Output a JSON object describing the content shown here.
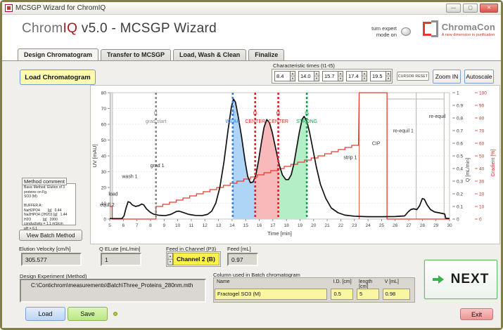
{
  "window": {
    "title": "MCSGP Wizard for ChromIQ",
    "minimize": "—",
    "maximize": "▢",
    "close": "✕"
  },
  "header": {
    "title_gray": "Chrom",
    "title_red": "IQ",
    "title_rest": "  v5.0 - MCSGP Wizard",
    "expert_line1": "turn expert",
    "expert_line2": "mode on",
    "logo_brand": "ChromaCon",
    "logo_tagline": "A new dimension in purification"
  },
  "tabs": [
    {
      "label": "Design Chromatogram",
      "active": true
    },
    {
      "label": "Transfer to MCSGP",
      "active": false
    },
    {
      "label": "Load, Wash & Clean",
      "active": false
    },
    {
      "label": "Finalize",
      "active": false
    }
  ],
  "toolbar": {
    "load_chromatogram": "Load Chromatogram",
    "characteristic_times_label": "Characteristic times (t1-t5)",
    "characteristic_times": [
      "8.4",
      "14.0",
      "15.7",
      "17.4",
      "19.5"
    ],
    "cursor_reset": "CURSOR RESET",
    "zoom_in": "Zoom IN",
    "autoscale": "Autoscale"
  },
  "chart_data": {
    "type": "line",
    "xlabel": "Time [min]",
    "ylabel_left": "UV [mAU]",
    "ylabel_right1": "Q [mL/min]",
    "ylabel_right2": "Gradient [%]",
    "xlim": [
      5,
      30
    ],
    "xstep": 1,
    "ylim_left": [
      0,
      80
    ],
    "ystep_left": 10,
    "ylim_right1": [
      0,
      1
    ],
    "ystep_right1": 0.1,
    "ylim_right2": [
      0,
      100
    ],
    "ystep_right2": 10,
    "grid": "horizontal-dotted",
    "uv_trace": {
      "name": "UV",
      "color": "#111111",
      "points": [
        [
          5,
          0.3
        ],
        [
          5.9,
          0.3
        ],
        [
          6.05,
          2
        ],
        [
          6.2,
          7
        ],
        [
          6.35,
          11
        ],
        [
          6.5,
          10.5
        ],
        [
          6.65,
          9
        ],
        [
          6.9,
          8
        ],
        [
          7.15,
          8.5
        ],
        [
          7.35,
          9.5
        ],
        [
          7.5,
          9
        ],
        [
          7.7,
          6.5
        ],
        [
          7.95,
          4.5
        ],
        [
          8.2,
          3.2
        ],
        [
          8.6,
          2.4
        ],
        [
          9.1,
          2.2
        ],
        [
          9.5,
          3
        ],
        [
          9.9,
          4.8
        ],
        [
          10.1,
          5
        ],
        [
          10.4,
          4.2
        ],
        [
          10.8,
          3
        ],
        [
          11.3,
          2.3
        ],
        [
          11.8,
          2.2
        ],
        [
          12.2,
          3
        ],
        [
          12.5,
          5
        ],
        [
          12.8,
          10
        ],
        [
          13.1,
          20
        ],
        [
          13.4,
          36
        ],
        [
          13.7,
          56
        ],
        [
          13.95,
          71
        ],
        [
          14.1,
          76
        ],
        [
          14.25,
          74
        ],
        [
          14.45,
          65
        ],
        [
          14.7,
          52
        ],
        [
          14.95,
          37
        ],
        [
          15.15,
          27
        ],
        [
          15.35,
          23
        ],
        [
          15.55,
          23.5
        ],
        [
          15.75,
          28
        ],
        [
          15.95,
          37
        ],
        [
          16.15,
          48
        ],
        [
          16.35,
          58
        ],
        [
          16.55,
          63
        ],
        [
          16.75,
          61
        ],
        [
          16.95,
          55
        ],
        [
          17.2,
          45
        ],
        [
          17.45,
          35
        ],
        [
          17.7,
          28
        ],
        [
          17.95,
          25
        ],
        [
          18.15,
          25
        ],
        [
          18.35,
          28
        ],
        [
          18.55,
          35
        ],
        [
          18.75,
          45
        ],
        [
          18.95,
          55
        ],
        [
          19.15,
          63
        ],
        [
          19.3,
          65
        ],
        [
          19.5,
          62
        ],
        [
          19.7,
          55
        ],
        [
          19.95,
          44
        ],
        [
          20.2,
          33
        ],
        [
          20.5,
          22
        ],
        [
          20.9,
          13
        ],
        [
          21.3,
          7
        ],
        [
          21.8,
          4
        ],
        [
          22.3,
          2.5
        ],
        [
          23,
          1.8
        ],
        [
          24,
          1.5
        ],
        [
          25,
          1.5
        ],
        [
          26,
          1.6
        ],
        [
          26.7,
          2
        ],
        [
          26.95,
          4.5
        ],
        [
          27.15,
          6
        ],
        [
          27.35,
          6.5
        ],
        [
          27.6,
          6
        ],
        [
          27.8,
          8.5
        ],
        [
          28,
          13
        ],
        [
          28.15,
          12.5
        ],
        [
          28.35,
          9
        ],
        [
          28.6,
          6
        ],
        [
          28.9,
          4.5
        ],
        [
          29.2,
          4
        ],
        [
          29.5,
          3.5
        ],
        [
          29.65,
          3.2
        ],
        [
          29.72,
          0.5
        ],
        [
          30,
          0.3
        ]
      ]
    },
    "gradient_trace": {
      "name": "Gradient",
      "color": "#e8392b",
      "head": [
        [
          5,
          10
        ],
        [
          5.18,
          10
        ],
        [
          5.18,
          0
        ],
        [
          8.4,
          0
        ],
        [
          8.4,
          10
        ]
      ],
      "ramp": {
        "x1": 8.4,
        "y1": 10,
        "x2": 23.3,
        "y2": 60,
        "steps": 30
      },
      "tail": [
        [
          23.35,
          100
        ],
        [
          25.4,
          100
        ],
        [
          25.4,
          0
        ],
        [
          30,
          0
        ]
      ]
    },
    "cursors": [
      {
        "t": 8.4,
        "label1": "t1",
        "label2": "grad start",
        "color": "#8c8c8c"
      },
      {
        "t": 14.05,
        "label1": "t2",
        "label2": "WEAK",
        "color": "#3b7dd8"
      },
      {
        "t": 15.7,
        "label1": "t3",
        "label2": "CENTER",
        "color": "#d02a2a"
      },
      {
        "t": 17.4,
        "label1": "t4",
        "label2": "CENTER",
        "color": "#d02a2a"
      },
      {
        "t": 19.5,
        "label1": "t5",
        "label2": "STRONG",
        "color": "#1f9e4a"
      }
    ],
    "regions": [
      {
        "x1": 14.05,
        "x2": 15.7,
        "fill": "#aed4f6"
      },
      {
        "x1": 15.7,
        "x2": 17.4,
        "fill": "#f7b9b9"
      },
      {
        "x1": 17.4,
        "x2": 19.5,
        "fill": "#b3eec6"
      }
    ],
    "phase_lines": [
      {
        "x": 5.08,
        "color": "gray"
      },
      {
        "x": 5.2,
        "color": "gray"
      },
      {
        "x": 23.35,
        "color": "red"
      },
      {
        "x": 25.4,
        "color": "red"
      },
      {
        "x": 27.55,
        "color": "gray"
      },
      {
        "x": 29.6,
        "color": "gray"
      }
    ],
    "q_segments": [
      {
        "x1": 25.42,
        "x2": 29.6,
        "q": 0.95
      }
    ],
    "phase_labels": [
      {
        "x": 5.6,
        "y": 15,
        "text": "load",
        "anchor": "end"
      },
      {
        "x": 5.35,
        "y": 8,
        "text": "equil 2",
        "anchor": "end"
      },
      {
        "x": 5.9,
        "y": 26,
        "text": "wash 1",
        "anchor": "start"
      },
      {
        "x": 8.5,
        "y": 33,
        "text": "grad 1",
        "anchor": "middle"
      },
      {
        "x": 22.7,
        "y": 38,
        "text": "strip 1",
        "anchor": "middle"
      },
      {
        "x": 24.6,
        "y": 47,
        "text": "CIP",
        "anchor": "middle"
      },
      {
        "x": 26.6,
        "y": 55,
        "text": "re-equil 1",
        "anchor": "middle"
      },
      {
        "x": 29.1,
        "y": 64,
        "text": "re-equil",
        "anchor": "middle"
      }
    ]
  },
  "method_comment": {
    "label": "Method comment",
    "text": "Basic Method: Elution of 3 proteins on Fg.\nSO3 (M)\n\nBUFFER A:\nNaH2PO4        [g]   0.44\nNa2HPO4 (2H2O) [g]   1.44\nH2O            [g]   2000\nconductivity = 1.1 mS/cm\npH = 6.1"
  },
  "view_batch_method": "View Batch Method",
  "params": [
    {
      "label": "Elution Velocity [cm/h]",
      "value": "305.577",
      "type": "text"
    },
    {
      "label": "Q ELute [mL/min]",
      "value": "1",
      "type": "text"
    },
    {
      "label": "Feed in Channel (P3)",
      "value": "Channel 2 (B)",
      "type": "dropdown"
    },
    {
      "label": "Feed [mL]",
      "value": "0.97",
      "type": "text"
    }
  ],
  "design_experiment": {
    "label": "Design Experiment (Method)",
    "path": "C:\\Contichrom\\measurements\\Batch\\Three_Proteins_280nm.mth"
  },
  "column_table": {
    "label": "Column used in Batch chromatogram",
    "headers": [
      "Name",
      "I.D. [cm]",
      "length [cm]",
      "V [mL]"
    ],
    "row": [
      "Fractogel SO3 (M)",
      "0.5",
      "5",
      "0.98"
    ]
  },
  "footer": {
    "load": "Load",
    "save": "Save",
    "next": "NEXT",
    "exit": "Exit"
  }
}
